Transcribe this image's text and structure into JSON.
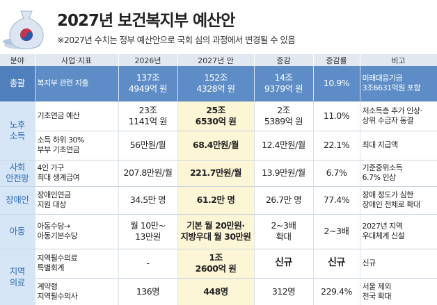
{
  "header": {
    "title": "2027년 보건복지부 예산안",
    "subtitle": "※2027년 수치는 정부 예산안으로 국회 심의 과정에서 변경될 수 있음"
  },
  "table": {
    "columns": [
      "분야",
      "사업·지표",
      "2026년",
      "2027년 안",
      "증감",
      "증감률",
      "비고"
    ],
    "groups": [
      {
        "category": "총괄",
        "rows": [
          [
            "복지부 관련 지출",
            "137조\n4949억 원",
            "152조\n4328억 원",
            "14조\n9379억 원",
            "10.9%",
            "미래대응기금\n3조6631억원 포함"
          ]
        ]
      },
      {
        "category": "노후\n소득",
        "rows": [
          [
            "기초연금 예산",
            "23조\n1141억 원",
            "25조\n6530억 원",
            "2조\n5389억 원",
            "11.0%",
            "저소득층 추가 인상·\n상위 수급자 동결"
          ],
          [
            "소득 하위 30%\n부부 기초연금",
            "56만원/월",
            "68.4만원/월",
            "12.4만원/월",
            "22.1%",
            "최대 지급액"
          ]
        ]
      },
      {
        "category": "사회\n안전망",
        "rows": [
          [
            "4인 가구\n최대 생계급여",
            "207.8만원/월",
            "221.7만원/월",
            "13.9만원/월",
            "6.7%",
            "기준중위소득\n6.7% 인상"
          ]
        ]
      },
      {
        "category": "장애인",
        "rows": [
          [
            "장애인연금\n지원 대상",
            "34.5만 명",
            "61.2만 명",
            "26.7만 명",
            "77.4%",
            "장애 정도가 심한\n장애인 전체로 확대"
          ]
        ]
      },
      {
        "category": "아동",
        "rows": [
          [
            "아동수당→\n아동기본수당",
            "월 10만~\n13만원",
            "기본 월 20만원·\n지방우대 월 30만원",
            "2~3배\n확대",
            "2~3배",
            "2027년 지역\n우대체계 신설"
          ]
        ]
      },
      {
        "category": "지역\n의료",
        "rows": [
          [
            "지역필수의료\n특별회계",
            "-",
            "1조\n2600억 원",
            "신규",
            "신규",
            "신규"
          ],
          [
            "계약형\n지역필수의사",
            "136명",
            "448명",
            "312명",
            "229.4%",
            "서울 제외\n전국 확대"
          ]
        ]
      }
    ]
  }
}
